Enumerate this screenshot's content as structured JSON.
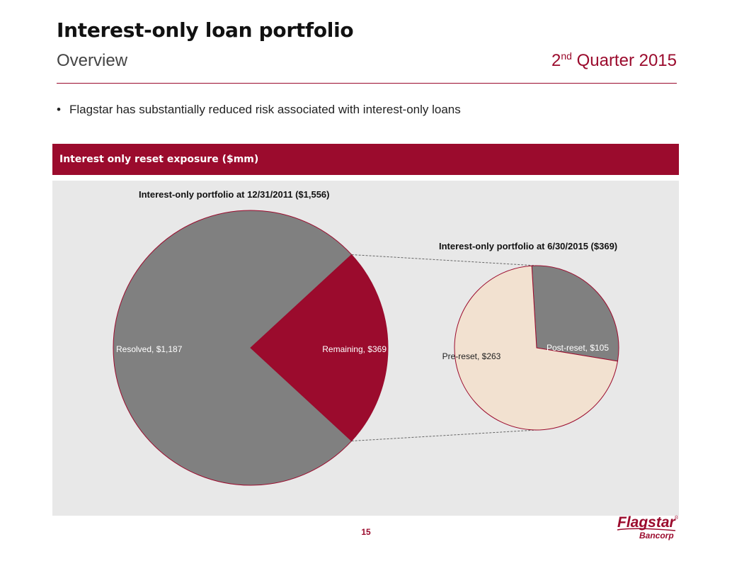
{
  "header": {
    "title": "Interest-only loan portfolio",
    "subtitle": "Overview",
    "quarter_ordinal": "2",
    "quarter_suffix": "nd",
    "quarter_rest": " Quarter 2015"
  },
  "bullets": [
    "Flagstar has substantially reduced risk associated with interest-only loans"
  ],
  "section": {
    "title": "Interest only reset exposure ($mm)"
  },
  "footer": {
    "page_number": "15",
    "logo_text": "Flagstar",
    "logo_subtext": "Bancorp",
    "logo_mark": "®"
  },
  "colors": {
    "brand": "#9b0b2d",
    "gray_slice": "#808080",
    "peach_slice": "#f2e1d0",
    "panel_bg": "#e8e8e8"
  },
  "chart_data": [
    {
      "type": "pie",
      "title": "Interest-only portfolio at 12/31/2011  ($1,556)",
      "slices": [
        {
          "label": "Resolved, $1,187",
          "value": 1187,
          "color": "#808080"
        },
        {
          "label": "Remaining, $369",
          "value": 369,
          "color": "#9b0b2d"
        }
      ]
    },
    {
      "type": "pie",
      "title": "Interest-only portfolio at 6/30/2015 ($369)",
      "slices": [
        {
          "label": "Pre-reset, $263",
          "value": 263,
          "color": "#f2e1d0"
        },
        {
          "label": "Post-reset, $105",
          "value": 105,
          "color": "#808080"
        }
      ]
    }
  ]
}
